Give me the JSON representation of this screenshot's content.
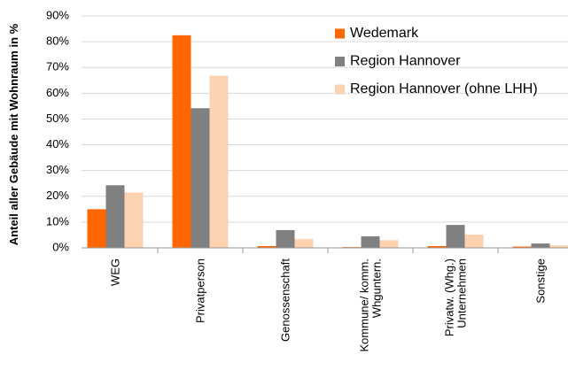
{
  "chart_data": {
    "type": "bar",
    "y_axis_label": "Anteil aller Gebäude mit Wohnraum in %",
    "categories": [
      "WEG",
      "Privatperson",
      "Genossenschaft",
      "Kommune/ komm.\nWhguntern.",
      "Privatw. (Whg.)\nUnternehmen",
      "Sonstige"
    ],
    "series": [
      {
        "name": "Wedemark",
        "color": "#ff6600",
        "values": [
          15,
          82.5,
          0.7,
          0.3,
          0.7,
          0.5
        ]
      },
      {
        "name": "Region Hannover",
        "color": "#808080",
        "values": [
          24.3,
          54.2,
          6.9,
          4.5,
          8.9,
          1.7
        ]
      },
      {
        "name": "Region Hannover (ohne LHH)",
        "color": "#fdd2b0",
        "values": [
          21.5,
          66.8,
          3.4,
          3,
          5.2,
          1
        ]
      }
    ],
    "ylim": [
      0,
      90
    ],
    "yticks": [
      {
        "value": 0,
        "label": "0%"
      },
      {
        "value": 10,
        "label": "10%"
      },
      {
        "value": 20,
        "label": "20%"
      },
      {
        "value": 30,
        "label": "30%"
      },
      {
        "value": 40,
        "label": "40%"
      },
      {
        "value": 50,
        "label": "50%"
      },
      {
        "value": 60,
        "label": "60%"
      },
      {
        "value": 70,
        "label": "70%"
      },
      {
        "value": 80,
        "label": "80%"
      },
      {
        "value": 90,
        "label": "90%"
      }
    ],
    "grid": true
  }
}
